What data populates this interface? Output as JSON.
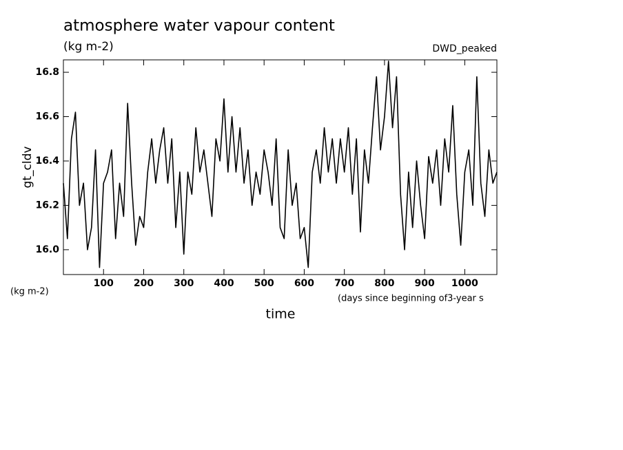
{
  "chart_data": {
    "type": "line",
    "title": "atmosphere water vapour content",
    "units": "(kg m-2)",
    "annotation": "DWD_peaked",
    "y_label": "gt_cldv",
    "y_units": "(kg m-2)",
    "x_units": "(days since beginning of3-year s",
    "x_label": "time",
    "x": [
      0,
      10,
      20,
      30,
      40,
      50,
      60,
      70,
      80,
      90,
      100,
      110,
      120,
      130,
      140,
      150,
      160,
      170,
      180,
      190,
      200,
      210,
      220,
      230,
      240,
      250,
      260,
      270,
      280,
      290,
      300,
      310,
      320,
      330,
      340,
      350,
      360,
      370,
      380,
      390,
      400,
      410,
      420,
      430,
      440,
      450,
      460,
      470,
      480,
      490,
      500,
      510,
      520,
      530,
      540,
      550,
      560,
      570,
      580,
      590,
      600,
      610,
      620,
      630,
      640,
      650,
      660,
      670,
      680,
      690,
      700,
      710,
      720,
      730,
      740,
      750,
      760,
      770,
      780,
      790,
      800,
      810,
      820,
      830,
      840,
      850,
      860,
      870,
      880,
      890,
      900,
      910,
      920,
      930,
      940,
      950,
      960,
      970,
      980,
      990,
      1000,
      1010,
      1020,
      1030,
      1040,
      1050,
      1060,
      1070,
      1080
    ],
    "series": [
      {
        "name": "gt_cldv",
        "color": "#000000",
        "values": [
          16.3,
          16.05,
          16.5,
          16.62,
          16.2,
          16.3,
          16.0,
          16.1,
          16.45,
          15.92,
          16.3,
          16.35,
          16.45,
          16.05,
          16.3,
          16.15,
          16.66,
          16.3,
          16.02,
          16.15,
          16.1,
          16.35,
          16.5,
          16.3,
          16.45,
          16.55,
          16.3,
          16.5,
          16.1,
          16.35,
          15.98,
          16.35,
          16.25,
          16.55,
          16.35,
          16.45,
          16.3,
          16.15,
          16.5,
          16.4,
          16.68,
          16.35,
          16.6,
          16.35,
          16.55,
          16.3,
          16.45,
          16.2,
          16.35,
          16.25,
          16.45,
          16.35,
          16.2,
          16.5,
          16.1,
          16.05,
          16.45,
          16.2,
          16.3,
          16.05,
          16.1,
          15.92,
          16.35,
          16.45,
          16.3,
          16.55,
          16.35,
          16.5,
          16.3,
          16.5,
          16.35,
          16.55,
          16.25,
          16.5,
          16.08,
          16.45,
          16.3,
          16.55,
          16.78,
          16.45,
          16.6,
          16.85,
          16.55,
          16.78,
          16.25,
          16.0,
          16.35,
          16.1,
          16.4,
          16.2,
          16.05,
          16.42,
          16.3,
          16.45,
          16.2,
          16.5,
          16.35,
          16.65,
          16.25,
          16.02,
          16.35,
          16.45,
          16.2,
          16.78,
          16.3,
          16.15,
          16.45,
          16.3,
          16.35
        ]
      }
    ],
    "xlim": [
      0,
      1080
    ],
    "xticks": [
      100,
      200,
      300,
      400,
      500,
      600,
      700,
      800,
      900,
      1000
    ],
    "ylim": [
      15.888,
      16.856
    ],
    "yticks": [
      {
        "value": 16.0,
        "label": "16.0"
      },
      {
        "value": 16.2,
        "label": "16.2"
      },
      {
        "value": 16.4,
        "label": "16.4"
      },
      {
        "value": 16.6,
        "label": "16.6"
      },
      {
        "value": 16.8,
        "label": "16.8"
      }
    ],
    "grid": false
  }
}
